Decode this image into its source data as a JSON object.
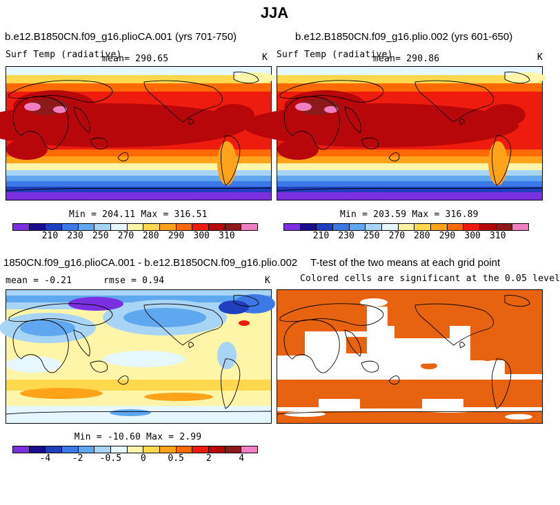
{
  "figure": {
    "season_title": "JJA"
  },
  "panel_top_left": {
    "case_title": "b.e12.B1850CN.f09_g16.plioCA.001 (yrs 701-750)",
    "variable": "Surf Temp (radiative)",
    "mean_text": "mean= 290.65",
    "units": "K",
    "stats_text": "Min = 204.11 Max = 316.51",
    "colorbar_ticks": [
      "210",
      "230",
      "250",
      "270",
      "280",
      "290",
      "300",
      "310"
    ]
  },
  "panel_top_right": {
    "case_title": "b.e12.B1850CN.f09_g16.plio.002 (yrs 601-650)",
    "variable": "Surf Temp (radiative)",
    "mean_text": "mean= 290.86",
    "units": "K",
    "stats_text": "Min = 203.59 Max = 316.89",
    "colorbar_ticks": [
      "210",
      "230",
      "250",
      "270",
      "280",
      "290",
      "300",
      "310"
    ]
  },
  "panel_bottom_left": {
    "case_title": "1850CN.f09_g16.plioCA.001 - b.e12.B1850CN.f09_g16.plio.002",
    "mean_text": "mean =   -0.21",
    "rmse_text": "rmse =    0.94",
    "units": "K",
    "stats_text": "Min = -10.60 Max =   2.99",
    "colorbar_ticks": [
      "-4",
      "-2",
      "-0.5",
      "0",
      "0.5",
      "2",
      "4"
    ]
  },
  "panel_bottom_right": {
    "title": "T-test of the two means at each grid point",
    "subtitle": "Colored cells are significant at the 0.05 level"
  },
  "colors": {
    "abs_scale": [
      "#7a2fe0",
      "#1a0d8c",
      "#1f3fbf",
      "#3c78e6",
      "#5fa8f0",
      "#a8d4f5",
      "#e6f7ff",
      "#fff5a8",
      "#ffd84d",
      "#ffa31a",
      "#ff6a00",
      "#ee1c0e",
      "#b8070a",
      "#8c1a1a",
      "#f07ec2"
    ],
    "diff_scale": [
      "#7a2fe0",
      "#1a0d8c",
      "#1f3fbf",
      "#3c78e6",
      "#5fa8f0",
      "#a8d4f5",
      "#e6f7ff",
      "#fff5a8",
      "#ffd84d",
      "#ffa31a",
      "#ff6a00",
      "#ee1c0e",
      "#b8070a",
      "#8c1a1a",
      "#f07ec2"
    ],
    "significance": "#e8630f"
  }
}
